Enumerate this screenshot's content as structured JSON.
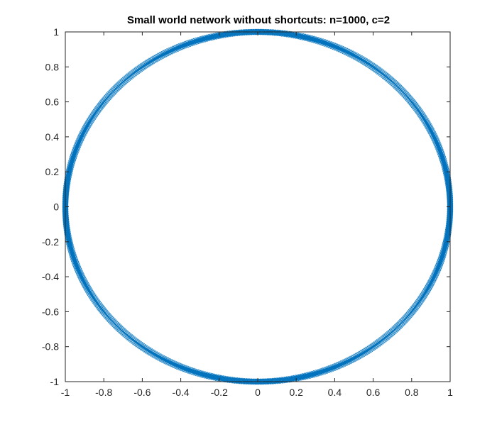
{
  "chart_data": {
    "type": "scatter",
    "title": "Small world network without shortcuts: n=1000, c=2",
    "xlabel": "",
    "ylabel": "",
    "xlim": [
      -1,
      1
    ],
    "ylim": [
      -1,
      1
    ],
    "xticks": [
      -1,
      -0.8,
      -0.6,
      -0.4,
      -0.2,
      0,
      0.2,
      0.4,
      0.6,
      0.8,
      1
    ],
    "xtick_labels": [
      "-1",
      "-0.8",
      "-0.6",
      "-0.4",
      "-0.2",
      "0",
      "0.2",
      "0.4",
      "0.6",
      "0.8",
      "1"
    ],
    "yticks": [
      -1,
      -0.8,
      -0.6,
      -0.4,
      -0.2,
      0,
      0.2,
      0.4,
      0.6,
      0.8,
      1
    ],
    "ytick_labels": [
      "-1",
      "-0.8",
      "-0.6",
      "-0.4",
      "-0.2",
      "0",
      "0.2",
      "0.4",
      "0.6",
      "0.8",
      "1"
    ],
    "grid": false,
    "box": true,
    "legend": "none",
    "series": [
      {
        "node_count": 1000,
        "neighbors_c": 2,
        "layout": "unit circle",
        "radius": 1,
        "center": [
          0,
          0
        ],
        "marker": "x",
        "color": "#0072BD"
      }
    ]
  }
}
